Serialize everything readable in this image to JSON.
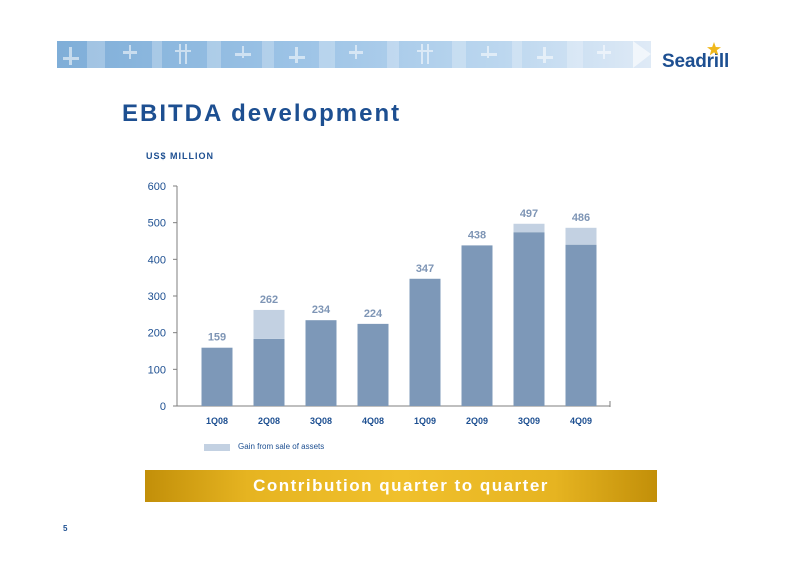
{
  "header": {
    "logo_text": "Seadrill"
  },
  "slide": {
    "title": "EBITDA development",
    "unit_label": "US$ MILLION",
    "footer_text": "Contribution quarter to quarter",
    "page_number": "5"
  },
  "colors": {
    "brand_blue": "#1d4f91",
    "bar_base": "#7d98b8",
    "bar_gain": "#c3d1e2",
    "value_label": "#7e95b5",
    "footer_gold": "#e6b421"
  },
  "chart_data": {
    "type": "bar",
    "stacked": true,
    "title": "",
    "xlabel": "",
    "ylabel": "",
    "categories": [
      "1Q08",
      "2Q08",
      "3Q08",
      "4Q08",
      "1Q09",
      "2Q09",
      "3Q09",
      "4Q09"
    ],
    "series": [
      {
        "values": [
          159,
          183,
          234,
          224,
          347,
          438,
          474,
          440
        ]
      },
      {
        "name": "Gain from sale of assets",
        "values": [
          0,
          79,
          0,
          0,
          0,
          0,
          23,
          46
        ]
      }
    ],
    "totals": [
      159,
      262,
      234,
      224,
      347,
      438,
      497,
      486
    ],
    "ylim": [
      0,
      600
    ],
    "yticks": [
      0,
      100,
      200,
      300,
      400,
      500,
      600
    ],
    "grid": false,
    "legend_position": "bottom-left"
  }
}
